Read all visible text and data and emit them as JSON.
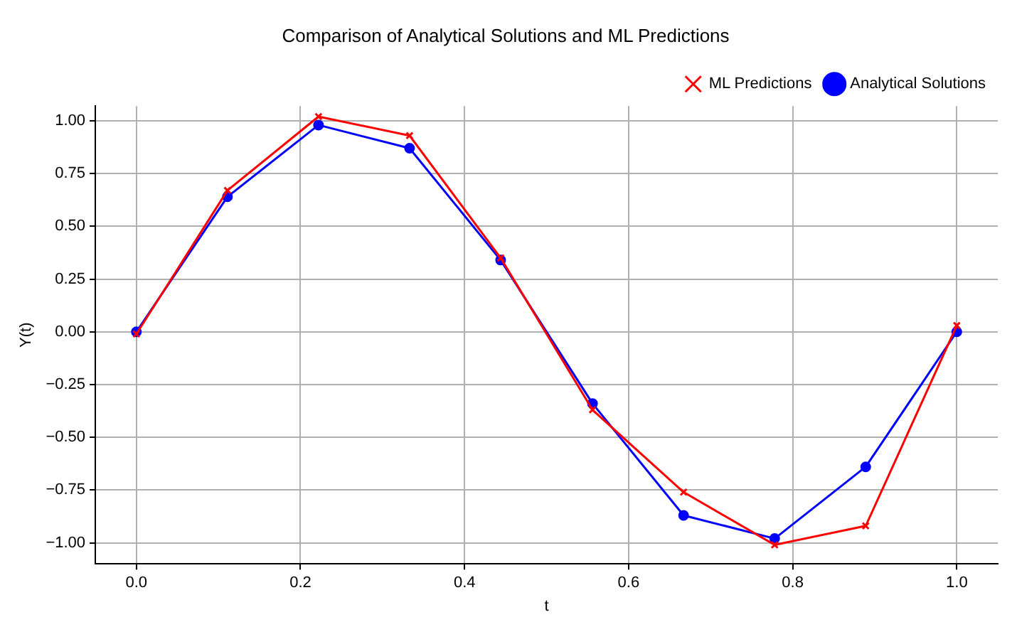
{
  "chart_data": {
    "type": "line",
    "title": "Comparison of Analytical Solutions and ML Predictions",
    "xlabel": "t",
    "ylabel": "Y(t)",
    "x": [
      0,
      0.111,
      0.222,
      0.333,
      0.444,
      0.556,
      0.667,
      0.778,
      0.889,
      1.0
    ],
    "series": [
      {
        "name": "Analytical Solutions",
        "color": "#0000ff",
        "marker": "circle",
        "values": [
          0,
          0.64,
          0.98,
          0.87,
          0.34,
          -0.34,
          -0.87,
          -0.98,
          -0.64,
          0
        ]
      },
      {
        "name": "ML Predictions",
        "color": "#ff0000",
        "marker": "cross",
        "values": [
          -0.01,
          0.67,
          1.02,
          0.93,
          0.35,
          -0.37,
          -0.76,
          -1.01,
          -0.92,
          0.03
        ]
      }
    ],
    "xlim": [
      -0.05,
      1.05
    ],
    "xticks": [
      {
        "value": 0,
        "label": "0.0"
      },
      0.2,
      0.4,
      0.6,
      0.8,
      {
        "value": 1,
        "label": "1.0"
      }
    ],
    "ylim": [
      -1.1,
      1.07
    ],
    "yticks": [
      {
        "value": -1,
        "label": "−1.00"
      },
      {
        "value": -0.75,
        "label": "−0.75"
      },
      {
        "value": -0.5,
        "label": "−0.50"
      },
      {
        "value": -0.25,
        "label": "−0.25"
      },
      {
        "value": 0,
        "label": "0.00"
      },
      {
        "value": 0.25,
        "label": "0.25"
      },
      {
        "value": 0.5,
        "label": "0.50"
      },
      {
        "value": 0.75,
        "label": "0.75"
      },
      {
        "value": 1,
        "label": "1.00"
      }
    ],
    "grid": true,
    "legend": "top right",
    "line_style": "solid"
  }
}
